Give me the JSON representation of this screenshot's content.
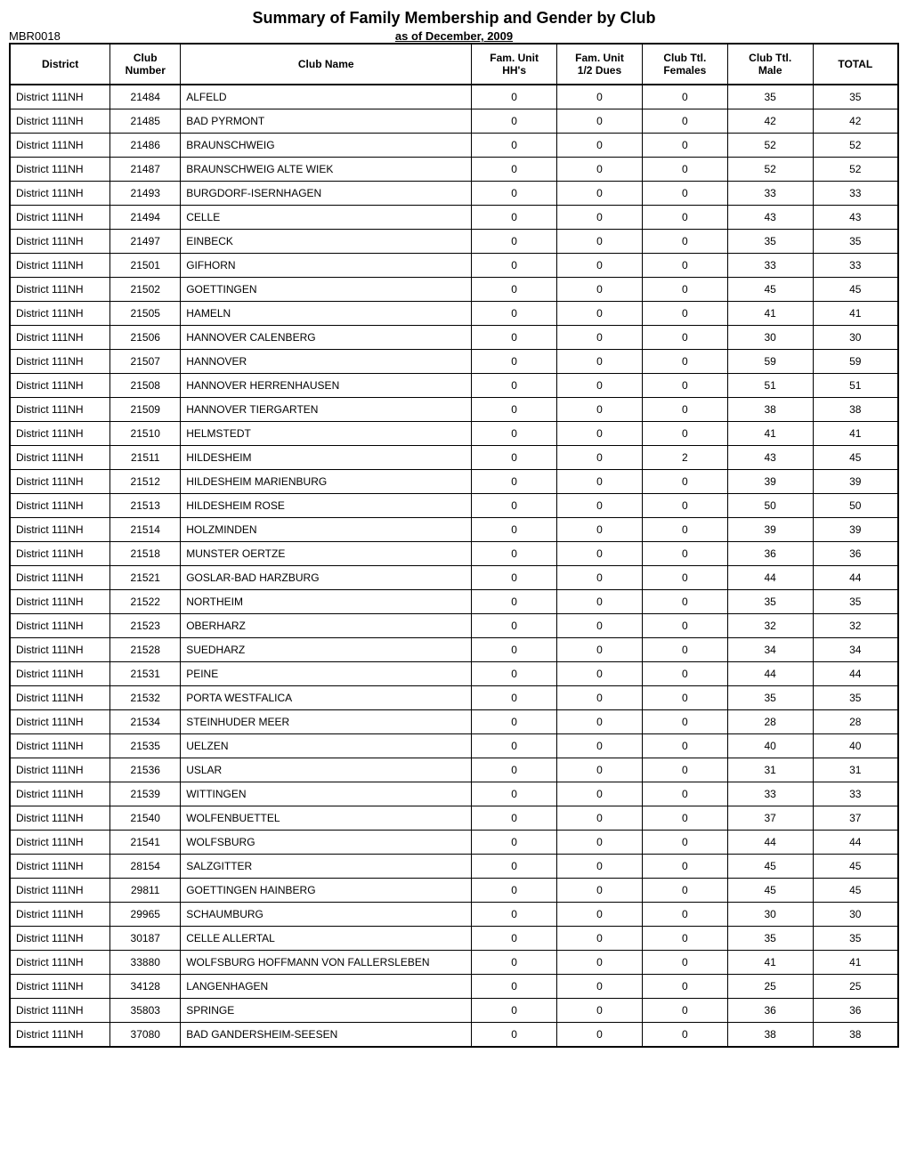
{
  "title": "Summary of Family Membership and Gender by Club",
  "report_id": "MBR0018",
  "subtitle": "as of December, 2009",
  "table": {
    "columns": [
      {
        "label": "District",
        "class": "district-header"
      },
      {
        "label": "Club\nNumber",
        "class": "clubnum-header"
      },
      {
        "label": "Club Name",
        "class": "clubname-header"
      },
      {
        "label": "Fam. Unit\nHH's",
        "class": "num-header"
      },
      {
        "label": "Fam. Unit\n1/2 Dues",
        "class": "num-header"
      },
      {
        "label": "Club Ttl.\nFemales",
        "class": "num-header"
      },
      {
        "label": "Club Ttl.\nMale",
        "class": "num-header"
      },
      {
        "label": "TOTAL",
        "class": "num-header"
      }
    ],
    "rows": [
      [
        "District 111NH",
        "21484",
        "ALFELD",
        "0",
        "0",
        "0",
        "35",
        "35"
      ],
      [
        "District 111NH",
        "21485",
        "BAD PYRMONT",
        "0",
        "0",
        "0",
        "42",
        "42"
      ],
      [
        "District 111NH",
        "21486",
        "BRAUNSCHWEIG",
        "0",
        "0",
        "0",
        "52",
        "52"
      ],
      [
        "District 111NH",
        "21487",
        "BRAUNSCHWEIG ALTE WIEK",
        "0",
        "0",
        "0",
        "52",
        "52"
      ],
      [
        "District 111NH",
        "21493",
        "BURGDORF-ISERNHAGEN",
        "0",
        "0",
        "0",
        "33",
        "33"
      ],
      [
        "District 111NH",
        "21494",
        "CELLE",
        "0",
        "0",
        "0",
        "43",
        "43"
      ],
      [
        "District 111NH",
        "21497",
        "EINBECK",
        "0",
        "0",
        "0",
        "35",
        "35"
      ],
      [
        "District 111NH",
        "21501",
        "GIFHORN",
        "0",
        "0",
        "0",
        "33",
        "33"
      ],
      [
        "District 111NH",
        "21502",
        "GOETTINGEN",
        "0",
        "0",
        "0",
        "45",
        "45"
      ],
      [
        "District 111NH",
        "21505",
        "HAMELN",
        "0",
        "0",
        "0",
        "41",
        "41"
      ],
      [
        "District 111NH",
        "21506",
        "HANNOVER CALENBERG",
        "0",
        "0",
        "0",
        "30",
        "30"
      ],
      [
        "District 111NH",
        "21507",
        "HANNOVER",
        "0",
        "0",
        "0",
        "59",
        "59"
      ],
      [
        "District 111NH",
        "21508",
        "HANNOVER HERRENHAUSEN",
        "0",
        "0",
        "0",
        "51",
        "51"
      ],
      [
        "District 111NH",
        "21509",
        "HANNOVER TIERGARTEN",
        "0",
        "0",
        "0",
        "38",
        "38"
      ],
      [
        "District 111NH",
        "21510",
        "HELMSTEDT",
        "0",
        "0",
        "0",
        "41",
        "41"
      ],
      [
        "District 111NH",
        "21511",
        "HILDESHEIM",
        "0",
        "0",
        "2",
        "43",
        "45"
      ],
      [
        "District 111NH",
        "21512",
        "HILDESHEIM MARIENBURG",
        "0",
        "0",
        "0",
        "39",
        "39"
      ],
      [
        "District 111NH",
        "21513",
        "HILDESHEIM ROSE",
        "0",
        "0",
        "0",
        "50",
        "50"
      ],
      [
        "District 111NH",
        "21514",
        "HOLZMINDEN",
        "0",
        "0",
        "0",
        "39",
        "39"
      ],
      [
        "District 111NH",
        "21518",
        "MUNSTER OERTZE",
        "0",
        "0",
        "0",
        "36",
        "36"
      ],
      [
        "District 111NH",
        "21521",
        "GOSLAR-BAD HARZBURG",
        "0",
        "0",
        "0",
        "44",
        "44"
      ],
      [
        "District 111NH",
        "21522",
        "NORTHEIM",
        "0",
        "0",
        "0",
        "35",
        "35"
      ],
      [
        "District 111NH",
        "21523",
        "OBERHARZ",
        "0",
        "0",
        "0",
        "32",
        "32"
      ],
      [
        "District 111NH",
        "21528",
        "SUEDHARZ",
        "0",
        "0",
        "0",
        "34",
        "34"
      ],
      [
        "District 111NH",
        "21531",
        "PEINE",
        "0",
        "0",
        "0",
        "44",
        "44"
      ],
      [
        "District 111NH",
        "21532",
        "PORTA WESTFALICA",
        "0",
        "0",
        "0",
        "35",
        "35"
      ],
      [
        "District 111NH",
        "21534",
        "STEINHUDER MEER",
        "0",
        "0",
        "0",
        "28",
        "28"
      ],
      [
        "District 111NH",
        "21535",
        "UELZEN",
        "0",
        "0",
        "0",
        "40",
        "40"
      ],
      [
        "District 111NH",
        "21536",
        "USLAR",
        "0",
        "0",
        "0",
        "31",
        "31"
      ],
      [
        "District 111NH",
        "21539",
        "WITTINGEN",
        "0",
        "0",
        "0",
        "33",
        "33"
      ],
      [
        "District 111NH",
        "21540",
        "WOLFENBUETTEL",
        "0",
        "0",
        "0",
        "37",
        "37"
      ],
      [
        "District 111NH",
        "21541",
        "WOLFSBURG",
        "0",
        "0",
        "0",
        "44",
        "44"
      ],
      [
        "District 111NH",
        "28154",
        "SALZGITTER",
        "0",
        "0",
        "0",
        "45",
        "45"
      ],
      [
        "District 111NH",
        "29811",
        "GOETTINGEN HAINBERG",
        "0",
        "0",
        "0",
        "45",
        "45"
      ],
      [
        "District 111NH",
        "29965",
        "SCHAUMBURG",
        "0",
        "0",
        "0",
        "30",
        "30"
      ],
      [
        "District 111NH",
        "30187",
        "CELLE ALLERTAL",
        "0",
        "0",
        "0",
        "35",
        "35"
      ],
      [
        "District 111NH",
        "33880",
        "WOLFSBURG HOFFMANN VON FALLERSLEBEN",
        "0",
        "0",
        "0",
        "41",
        "41"
      ],
      [
        "District 111NH",
        "34128",
        "LANGENHAGEN",
        "0",
        "0",
        "0",
        "25",
        "25"
      ],
      [
        "District 111NH",
        "35803",
        "SPRINGE",
        "0",
        "0",
        "0",
        "36",
        "36"
      ],
      [
        "District 111NH",
        "37080",
        "BAD GANDERSHEIM-SEESEN",
        "0",
        "0",
        "0",
        "38",
        "38"
      ]
    ],
    "cell_classes": [
      "district-cell",
      "clubnum-cell",
      "clubname-cell",
      "num-cell",
      "num-cell",
      "num-cell",
      "num-cell",
      "num-cell"
    ]
  }
}
